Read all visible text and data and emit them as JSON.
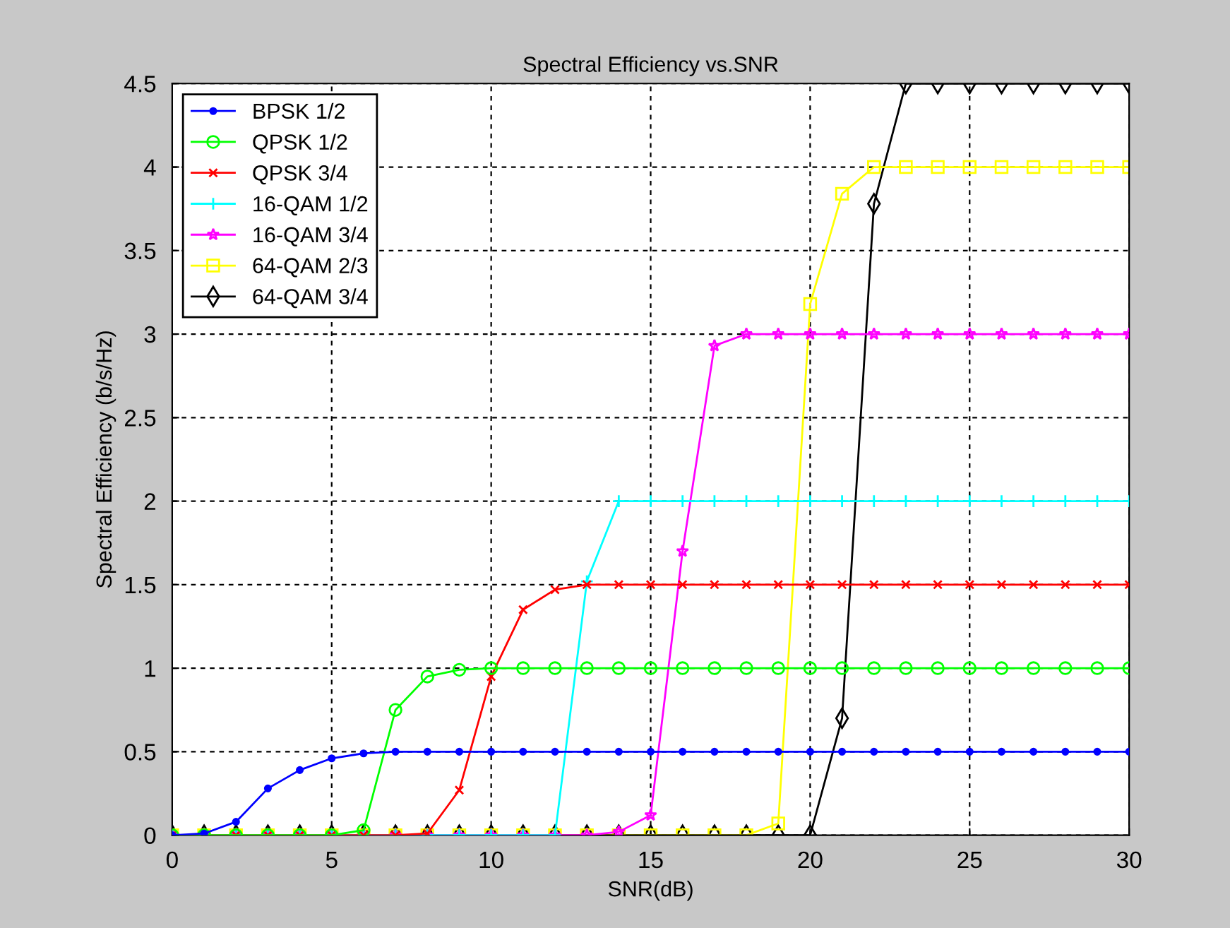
{
  "chart_data": {
    "type": "line",
    "title": "Spectral Efficiency vs.SNR",
    "xlabel": "SNR(dB)",
    "ylabel": "Spectral Efficiency (b/s/Hz)",
    "x": [
      0,
      1,
      2,
      3,
      4,
      5,
      6,
      7,
      8,
      9,
      10,
      11,
      12,
      13,
      14,
      15,
      16,
      17,
      18,
      19,
      20,
      21,
      22,
      23,
      24,
      25,
      26,
      27,
      28,
      29,
      30
    ],
    "xlim": [
      0,
      30
    ],
    "xticks": [
      0,
      5,
      10,
      15,
      20,
      25,
      30
    ],
    "ylim": [
      0,
      4.5
    ],
    "yticks": [
      0,
      0.5,
      1,
      1.5,
      2,
      2.5,
      3,
      3.5,
      4,
      4.5
    ],
    "grid": true,
    "legend": "top left",
    "series": [
      {
        "name": "BPSK 1/2",
        "color": "#0000ff",
        "marker": "point",
        "values": [
          0,
          0.01,
          0.08,
          0.28,
          0.39,
          0.46,
          0.49,
          0.5,
          0.5,
          0.5,
          0.5,
          0.5,
          0.5,
          0.5,
          0.5,
          0.5,
          0.5,
          0.5,
          0.5,
          0.5,
          0.5,
          0.5,
          0.5,
          0.5,
          0.5,
          0.5,
          0.5,
          0.5,
          0.5,
          0.5,
          0.5
        ]
      },
      {
        "name": "QPSK 1/2",
        "color": "#00ff00",
        "marker": "circle",
        "values": [
          0,
          0,
          0,
          0,
          0,
          0,
          0.03,
          0.75,
          0.95,
          0.99,
          1,
          1,
          1,
          1,
          1,
          1,
          1,
          1,
          1,
          1,
          1,
          1,
          1,
          1,
          1,
          1,
          1,
          1,
          1,
          1,
          1
        ]
      },
      {
        "name": "QPSK 3/4",
        "color": "#ff0000",
        "marker": "cross",
        "values": [
          0,
          0,
          0,
          0,
          0,
          0,
          0,
          0,
          0.01,
          0.27,
          0.95,
          1.35,
          1.47,
          1.5,
          1.5,
          1.5,
          1.5,
          1.5,
          1.5,
          1.5,
          1.5,
          1.5,
          1.5,
          1.5,
          1.5,
          1.5,
          1.5,
          1.5,
          1.5,
          1.5,
          1.5
        ]
      },
      {
        "name": "16-QAM 1/2",
        "color": "#00ffff",
        "marker": "plus",
        "values": [
          0,
          0,
          0,
          0,
          0,
          0,
          0,
          0,
          0,
          0,
          0,
          0,
          0,
          1.52,
          2,
          2,
          2,
          2,
          2,
          2,
          2,
          2,
          2,
          2,
          2,
          2,
          2,
          2,
          2,
          2,
          2
        ]
      },
      {
        "name": "16-QAM 3/4",
        "color": "#ff00ff",
        "marker": "star",
        "values": [
          0,
          0,
          0,
          0,
          0,
          0,
          0,
          0,
          0,
          0,
          0,
          0,
          0,
          0,
          0.02,
          0.12,
          1.7,
          2.93,
          3,
          3,
          3,
          3,
          3,
          3,
          3,
          3,
          3,
          3,
          3,
          3,
          3
        ]
      },
      {
        "name": "64-QAM 2/3",
        "color": "#ffff00",
        "marker": "square",
        "values": [
          0,
          0,
          0,
          0,
          0,
          0,
          0,
          0,
          0,
          0,
          0,
          0,
          0,
          0,
          0,
          0,
          0,
          0,
          0,
          0.07,
          3.18,
          3.84,
          4,
          4,
          4,
          4,
          4,
          4,
          4,
          4,
          4
        ]
      },
      {
        "name": "64-QAM 3/4",
        "color": "#000000",
        "marker": "diamond",
        "values": [
          0,
          0,
          0,
          0,
          0,
          0,
          0,
          0,
          0,
          0,
          0,
          0,
          0,
          0,
          0,
          0,
          0,
          0,
          0,
          0,
          0,
          0.7,
          3.78,
          4.5,
          4.5,
          4.5,
          4.5,
          4.5,
          4.5,
          4.5,
          4.5
        ]
      }
    ]
  }
}
